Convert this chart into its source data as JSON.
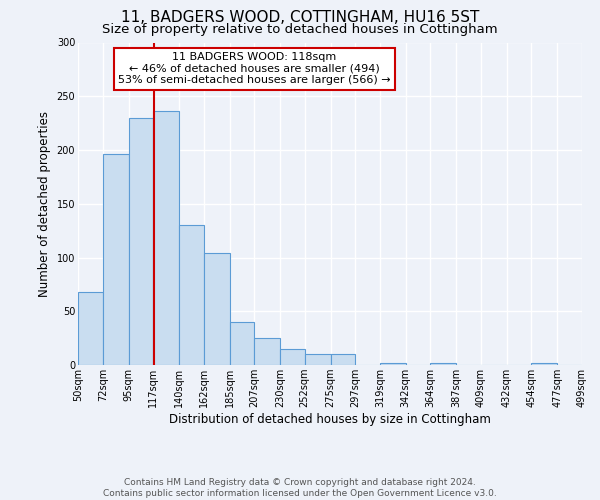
{
  "title": "11, BADGERS WOOD, COTTINGHAM, HU16 5ST",
  "subtitle": "Size of property relative to detached houses in Cottingham",
  "xlabel": "Distribution of detached houses by size in Cottingham",
  "ylabel": "Number of detached properties",
  "bin_edges": [
    50,
    72,
    95,
    117,
    140,
    162,
    185,
    207,
    230,
    252,
    275,
    297,
    319,
    342,
    364,
    387,
    409,
    432,
    454,
    477,
    499
  ],
  "bar_heights": [
    68,
    196,
    230,
    236,
    130,
    104,
    40,
    25,
    15,
    10,
    10,
    0,
    2,
    0,
    2,
    0,
    0,
    0,
    2,
    0
  ],
  "bar_color": "#c9ddf0",
  "bar_edge_color": "#5b9bd5",
  "bar_linewidth": 0.8,
  "vline_x": 118,
  "vline_color": "#cc0000",
  "vline_linewidth": 1.5,
  "annotation_line1": "11 BADGERS WOOD: 118sqm",
  "annotation_line2": "← 46% of detached houses are smaller (494)",
  "annotation_line3": "53% of semi-detached houses are larger (566) →",
  "annotation_box_edgecolor": "#cc0000",
  "annotation_box_facecolor": "#ffffff",
  "ylim": [
    0,
    300
  ],
  "yticks": [
    0,
    50,
    100,
    150,
    200,
    250,
    300
  ],
  "xtick_labels": [
    "50sqm",
    "72sqm",
    "95sqm",
    "117sqm",
    "140sqm",
    "162sqm",
    "185sqm",
    "207sqm",
    "230sqm",
    "252sqm",
    "275sqm",
    "297sqm",
    "319sqm",
    "342sqm",
    "364sqm",
    "387sqm",
    "409sqm",
    "432sqm",
    "454sqm",
    "477sqm",
    "499sqm"
  ],
  "footer_line1": "Contains HM Land Registry data © Crown copyright and database right 2024.",
  "footer_line2": "Contains public sector information licensed under the Open Government Licence v3.0.",
  "bg_color": "#eef2f9",
  "plot_bg_color": "#eef2f9",
  "grid_color": "#ffffff",
  "title_fontsize": 11,
  "subtitle_fontsize": 9.5,
  "axis_label_fontsize": 8.5,
  "tick_fontsize": 7,
  "footer_fontsize": 6.5,
  "annotation_fontsize": 8
}
